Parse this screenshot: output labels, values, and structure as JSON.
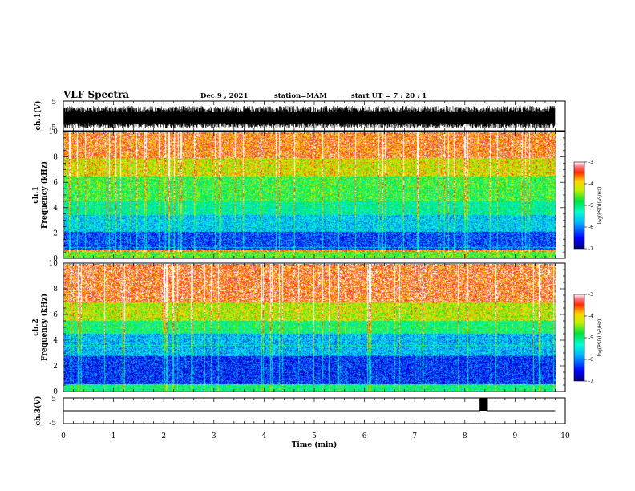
{
  "header": {
    "title": "VLF Spectra",
    "date": "Dec.9 , 2021",
    "station": "station=MAM",
    "start": "start UT = 7 : 20 : 1"
  },
  "chart_data": [
    {
      "type": "line",
      "panel": "ch1-waveform",
      "ylabel": "ch.1(V)",
      "ylim": [
        -5,
        5
      ],
      "yticks": [
        "5",
        "-5"
      ],
      "xlim": [
        0,
        10
      ],
      "note_fill": "dense black noise trace filling roughly -4 to +3 V over 0 to 9.8 min"
    },
    {
      "type": "heatmap",
      "panel": "ch1-spectrogram",
      "ylabel_top": "ch.1",
      "ylabel": "Frequency (kHz)",
      "ylim": [
        0,
        10
      ],
      "yticks": [
        "0",
        "2",
        "4",
        "6",
        "8",
        "10"
      ],
      "xlim": [
        0,
        9.8
      ],
      "colorbar": {
        "label": "log(PSD)(V²/Hz)",
        "ticks": [
          "-3",
          "-4",
          "-5",
          "-6",
          "-7"
        ],
        "range": [
          -7,
          -3
        ]
      },
      "bands": [
        {
          "from": 0,
          "to": 0.4,
          "level": -4.6
        },
        {
          "from": 0.4,
          "to": 0.6,
          "level": -3.6
        },
        {
          "from": 0.6,
          "to": 2.0,
          "level": -6.2
        },
        {
          "from": 2.0,
          "to": 3.4,
          "level": -5.6
        },
        {
          "from": 3.4,
          "to": 4.5,
          "level": -5.1
        },
        {
          "from": 4.5,
          "to": 6.5,
          "level": -4.7
        },
        {
          "from": 6.5,
          "to": 8.0,
          "level": -4.1
        },
        {
          "from": 8.0,
          "to": 10.0,
          "level": -3.5
        }
      ]
    },
    {
      "type": "heatmap",
      "panel": "ch2-spectrogram",
      "ylabel_top": "ch.2",
      "ylabel": "Frequency (kHz)",
      "ylim": [
        0,
        10
      ],
      "yticks": [
        "0",
        "2",
        "4",
        "6",
        "8",
        "10"
      ],
      "xlim": [
        0,
        9.8
      ],
      "colorbar": {
        "label": "log(PSD)(V²/Hz)",
        "ticks": [
          "-3",
          "-4",
          "-5",
          "-6",
          "-7"
        ],
        "range": [
          -7,
          -3
        ]
      },
      "bands": [
        {
          "from": 0,
          "to": 0.5,
          "level": -5.0
        },
        {
          "from": 0.5,
          "to": 2.8,
          "level": -6.3
        },
        {
          "from": 2.8,
          "to": 4.5,
          "level": -5.7
        },
        {
          "from": 4.5,
          "to": 5.5,
          "level": -4.9
        },
        {
          "from": 5.5,
          "to": 7.0,
          "level": -4.2
        },
        {
          "from": 7.0,
          "to": 10.0,
          "level": -3.4
        }
      ]
    },
    {
      "type": "line",
      "panel": "ch3-waveform",
      "ylabel": "ch.3(V)",
      "ylim": [
        -5,
        5
      ],
      "yticks": [
        "5",
        "-5"
      ],
      "xlim": [
        0,
        10
      ],
      "x": [
        0,
        8.3,
        8.3,
        8.45,
        8.45,
        9.8
      ],
      "y": [
        0,
        0,
        5,
        5,
        0,
        0
      ]
    }
  ],
  "xaxis": {
    "label": "Time (min)",
    "ticks": [
      "0",
      "1",
      "2",
      "3",
      "4",
      "5",
      "6",
      "7",
      "8",
      "9",
      "10"
    ]
  }
}
